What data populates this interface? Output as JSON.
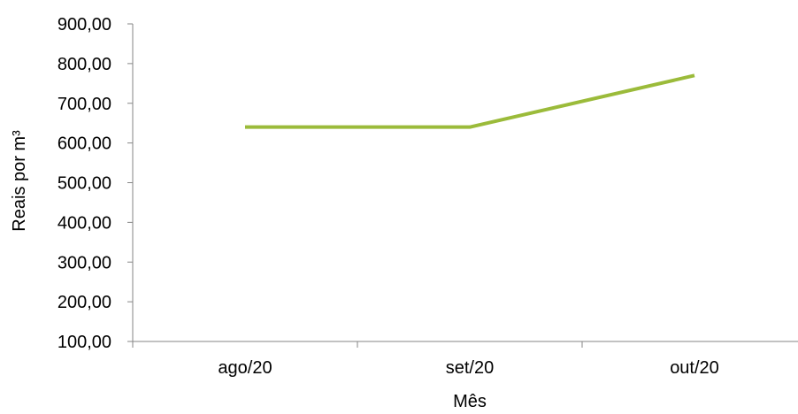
{
  "chart_data": {
    "type": "line",
    "categories": [
      "ago/20",
      "set/20",
      "out/20"
    ],
    "series": [
      {
        "values": [
          640,
          640,
          770
        ],
        "color": "#9bbb3a"
      }
    ],
    "xlabel": "Mês",
    "ylabel": "Reais por m³",
    "ylim": [
      100,
      900
    ],
    "yticks": [
      100,
      200,
      300,
      400,
      500,
      600,
      700,
      800,
      900
    ],
    "ytick_labels": [
      "100,00",
      "200,00",
      "300,00",
      "400,00",
      "500,00",
      "600,00",
      "700,00",
      "800,00",
      "900,00"
    ],
    "grid": false,
    "legend": "none"
  }
}
